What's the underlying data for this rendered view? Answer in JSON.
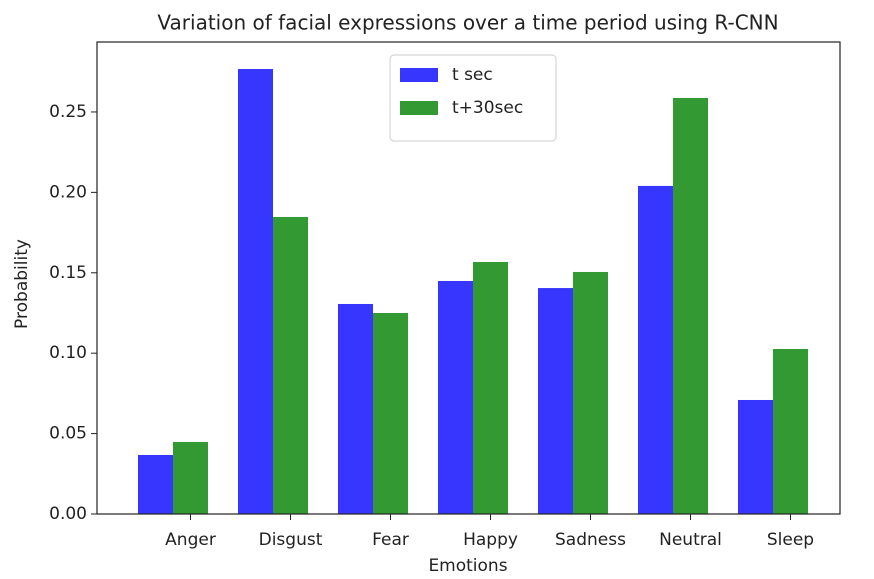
{
  "chart_data": {
    "type": "bar",
    "title": "Variation of facial expressions over a time period using R-CNN",
    "x_label": "Emotions",
    "y_label": "Probability",
    "categories": [
      "Anger",
      "Disgust",
      "Fear",
      "Happy",
      "Sadness",
      "Neutral",
      "Sleep"
    ],
    "series": [
      {
        "name": "t sec",
        "color": "#3636ff",
        "values": [
          0.0367,
          0.2767,
          0.1306,
          0.1449,
          0.1405,
          0.204,
          0.0709
        ]
      },
      {
        "name": "t+30sec",
        "color": "#339933",
        "values": [
          0.0448,
          0.1847,
          0.125,
          0.1567,
          0.1505,
          0.2587,
          0.1026
        ]
      }
    ],
    "ylim": [
      0,
      0.2935
    ],
    "yticks": [
      {
        "value": 0,
        "label": "0.00"
      },
      {
        "value": 0.05,
        "label": "0.05"
      },
      {
        "value": 0.1,
        "label": "0.10"
      },
      {
        "value": 0.15,
        "label": "0.15"
      },
      {
        "value": 0.2,
        "label": "0.20"
      },
      {
        "value": 0.25,
        "label": "0.25"
      }
    ],
    "legend": "upper center",
    "grid": false
  }
}
